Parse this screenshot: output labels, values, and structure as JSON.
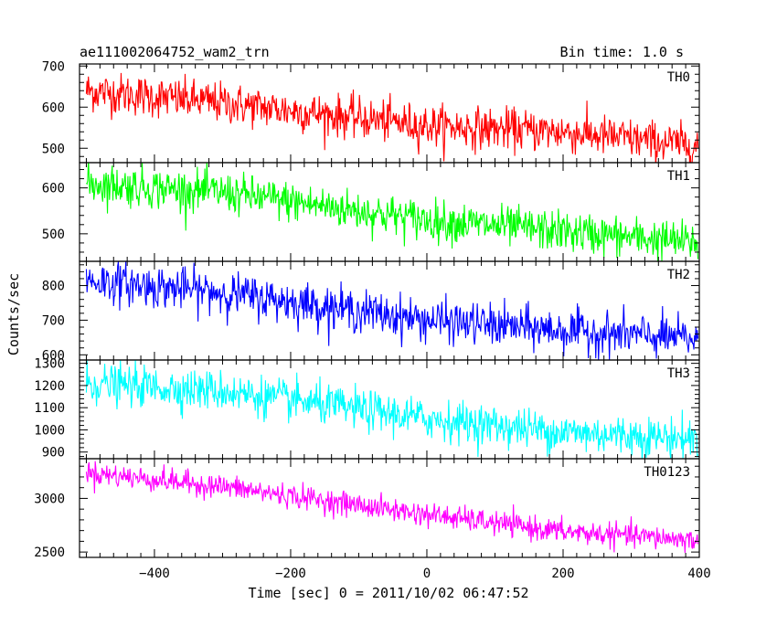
{
  "chart_data": {
    "type": "line",
    "title": "ae111002064752_wam2_trn",
    "subtitle": "Bin time: 1.0 s",
    "xlabel": "Time [sec] 0 = 2011/10/02 06:47:52",
    "ylabel": "Counts/sec",
    "xlim": [
      -510,
      400
    ],
    "x_ticks": [
      -400,
      -200,
      0,
      200,
      400
    ],
    "x_tick_labels": [
      "−400",
      "−200",
      "0",
      "200",
      "400"
    ],
    "x_step": 1.0,
    "grid": false,
    "panels": [
      {
        "name": "TH0",
        "color": "#ff0000",
        "ylim": [
          465,
          705
        ],
        "y_ticks": [
          500,
          600,
          700
        ],
        "y_tick_labels": [
          "500",
          "600",
          "700"
        ],
        "trend": [
          [
            -500,
            640
          ],
          [
            -300,
            610
          ],
          [
            0,
            555
          ],
          [
            200,
            540
          ],
          [
            400,
            505
          ]
        ],
        "noise_std": 25
      },
      {
        "name": "TH1",
        "color": "#00ff00",
        "ylim": [
          440,
          655
        ],
        "y_ticks": [
          500,
          600
        ],
        "y_tick_labels": [
          "500",
          "600"
        ],
        "trend": [
          [
            -500,
            610
          ],
          [
            -300,
            590
          ],
          [
            0,
            530
          ],
          [
            200,
            505
          ],
          [
            400,
            480
          ]
        ],
        "noise_std": 22
      },
      {
        "name": "TH2",
        "color": "#0000ff",
        "ylim": [
          585,
          870
        ],
        "y_ticks": [
          600,
          700,
          800
        ],
        "y_tick_labels": [
          "600",
          "700",
          "800"
        ],
        "trend": [
          [
            -500,
            815
          ],
          [
            -300,
            780
          ],
          [
            0,
            700
          ],
          [
            200,
            670
          ],
          [
            400,
            645
          ]
        ],
        "noise_std": 30
      },
      {
        "name": "TH3",
        "color": "#00ffff",
        "ylim": [
          870,
          1315
        ],
        "y_ticks": [
          900,
          1000,
          1100,
          1200,
          1300
        ],
        "y_tick_labels": [
          "900",
          "1000",
          "1100",
          "1200",
          "1300"
        ],
        "trend": [
          [
            -500,
            1210
          ],
          [
            -300,
            1175
          ],
          [
            0,
            1050
          ],
          [
            200,
            990
          ],
          [
            400,
            960
          ]
        ],
        "noise_std": 45
      },
      {
        "name": "TH0123",
        "color": "#ff00ff",
        "ylim": [
          2450,
          3370
        ],
        "y_ticks": [
          2500,
          3000
        ],
        "y_tick_labels": [
          "2500",
          "3000"
        ],
        "trend": [
          [
            -500,
            3240
          ],
          [
            -300,
            3110
          ],
          [
            0,
            2850
          ],
          [
            200,
            2690
          ],
          [
            400,
            2610
          ]
        ],
        "noise_std": 55
      }
    ]
  }
}
